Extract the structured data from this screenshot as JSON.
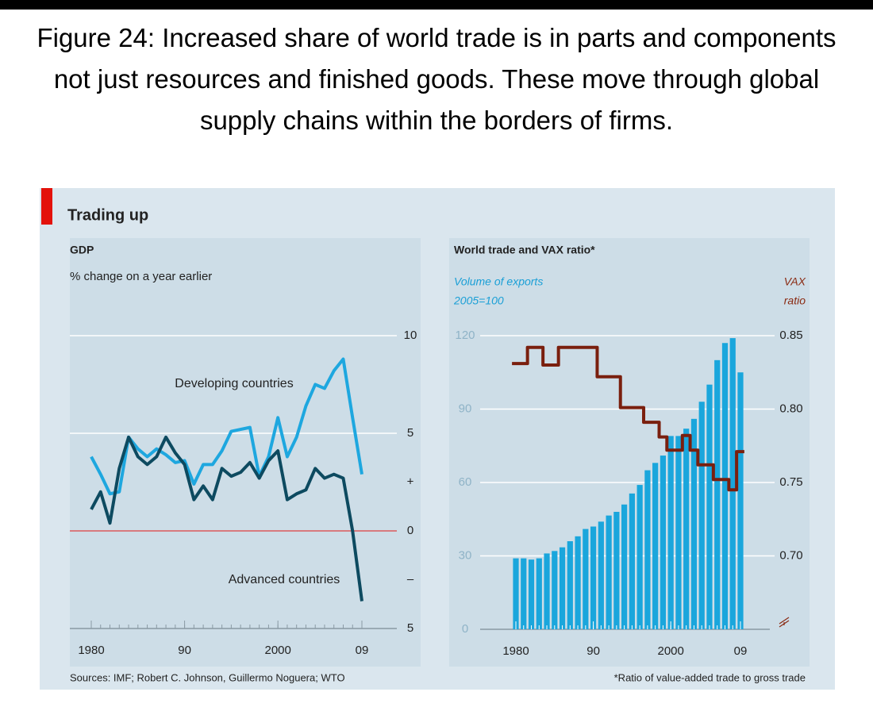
{
  "figure_title": "Figure 24: Increased share of world trade is in parts and components not just resources and finished goods. These move through global supply chains within the borders of firms.",
  "panel_title": "Trading up",
  "sources": "Sources: IMF; Robert C. Johnson, Guillermo Noguera; WTO",
  "footnote": "*Ratio of value-added trade to gross trade",
  "chart_data": [
    {
      "type": "line",
      "title": "GDP",
      "subtitle": "% change on a year earlier",
      "x": [
        1980,
        1981,
        1982,
        1983,
        1984,
        1985,
        1986,
        1987,
        1988,
        1989,
        1990,
        1991,
        1992,
        1993,
        1994,
        1995,
        1996,
        1997,
        1998,
        1999,
        2000,
        2001,
        2002,
        2003,
        2004,
        2005,
        2006,
        2007,
        2008,
        2009
      ],
      "series": [
        {
          "name": "Developing countries",
          "color": "#1ea7df",
          "values": [
            3.8,
            2.9,
            1.9,
            2.0,
            4.8,
            4.2,
            3.8,
            4.2,
            3.9,
            3.5,
            3.6,
            2.4,
            3.4,
            3.4,
            4.1,
            5.1,
            5.2,
            5.3,
            2.8,
            3.8,
            5.8,
            3.8,
            4.8,
            6.4,
            7.5,
            7.3,
            8.2,
            8.8,
            5.8,
            2.9
          ]
        },
        {
          "name": "Advanced countries",
          "color": "#0d4a60",
          "values": [
            1.1,
            2.0,
            0.4,
            3.2,
            4.8,
            3.8,
            3.4,
            3.8,
            4.8,
            4.0,
            3.4,
            1.6,
            2.3,
            1.6,
            3.2,
            2.8,
            3.0,
            3.5,
            2.7,
            3.6,
            4.1,
            1.6,
            1.9,
            2.1,
            3.2,
            2.7,
            2.9,
            2.7,
            0.0,
            -3.6
          ]
        }
      ],
      "xlim": [
        1980,
        2009
      ],
      "xticks": [
        1980,
        {
          "value": 1990,
          "label": "90"
        },
        2000,
        {
          "value": 2009,
          "label": "09"
        }
      ],
      "ylim": [
        -5,
        10
      ],
      "yticks": [
        10,
        5,
        {
          "value": 2.5,
          "label": "+"
        },
        0,
        {
          "value": -2.5,
          "label": "–"
        },
        {
          "value": -5,
          "label": "5"
        }
      ],
      "grid": true,
      "zero_line_color": "#e0403f",
      "y_axis_side": "right"
    },
    {
      "type": "bar-line",
      "title": "World trade and VAX ratio*",
      "ylabel": [
        "Volume of exports",
        "2005=100"
      ],
      "y2label": [
        "VAX",
        "ratio"
      ],
      "x": [
        1980,
        1981,
        1982,
        1983,
        1984,
        1985,
        1986,
        1987,
        1988,
        1989,
        1990,
        1991,
        1992,
        1993,
        1994,
        1995,
        1996,
        1997,
        1998,
        1999,
        2000,
        2001,
        2002,
        2003,
        2004,
        2005,
        2006,
        2007,
        2008,
        2009
      ],
      "series": [
        {
          "type": "bar",
          "color": "#1aa6dc",
          "values": [
            29,
            29,
            28.5,
            29,
            31,
            32,
            33.5,
            36,
            38,
            41,
            42,
            44,
            46.5,
            48,
            51,
            55.5,
            59,
            65,
            68,
            71,
            79,
            79,
            82,
            86,
            93,
            100,
            110,
            117,
            119,
            105
          ]
        },
        {
          "type": "line",
          "axis": "y2",
          "color": "#7a1f0e",
          "values": [
            0.831,
            0.831,
            0.842,
            0.842,
            0.83,
            0.83,
            0.842,
            0.842,
            0.842,
            0.842,
            0.842,
            0.822,
            0.822,
            0.822,
            0.801,
            0.801,
            0.801,
            0.791,
            0.791,
            0.781,
            0.772,
            0.772,
            0.782,
            0.772,
            0.762,
            0.762,
            0.752,
            0.752,
            0.745,
            0.771
          ]
        }
      ],
      "xlim": [
        1980,
        2009
      ],
      "xticks": [
        1980,
        {
          "value": 1990,
          "label": "90"
        },
        2000,
        {
          "value": 2009,
          "label": "09"
        }
      ],
      "ylim": [
        0,
        120
      ],
      "yticks": [
        120,
        90,
        60,
        30,
        0
      ],
      "y2lim": [
        0.65,
        0.85
      ],
      "y2ticks": [
        0.85,
        {
          "value": 0.8,
          "label": "0.80"
        },
        0.75,
        {
          "value": 0.7,
          "label": "0.70"
        }
      ],
      "grid": true
    }
  ]
}
